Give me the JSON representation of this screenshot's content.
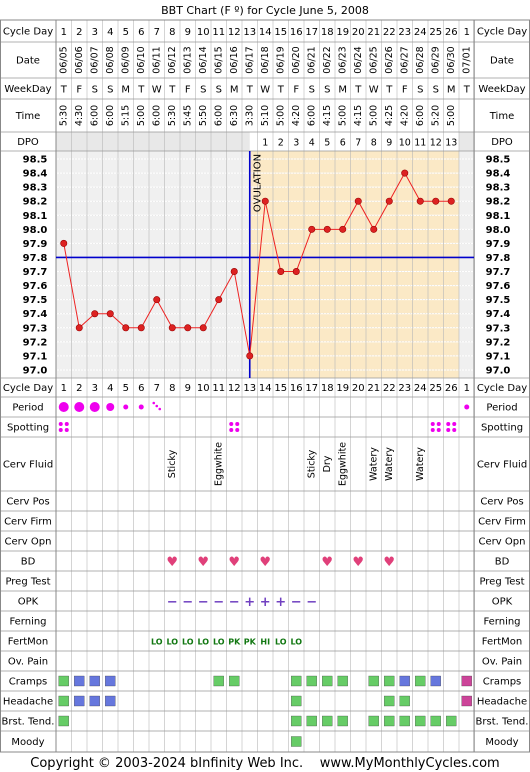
{
  "title": "BBT Chart (F º) for Cycle June 5, 2008",
  "footer": "Copyright © 2003-2024 bInfinity Web Inc.    www.MyMonthlyCycles.com",
  "labels": {
    "cycle_day": "Cycle Day",
    "date": "Date",
    "weekday": "WeekDay",
    "time": "Time",
    "dpo": "DPO",
    "period": "Period",
    "spotting": "Spotting",
    "cerv_fluid": "Cerv Fluid",
    "cerv_pos": "Cerv Pos",
    "cerv_firm": "Cerv Firm",
    "cerv_opn": "Cerv Opn",
    "bd": "BD",
    "preg_test": "Preg Test",
    "opk": "OPK",
    "ferning": "Ferning",
    "fertmon": "FertMon",
    "ov_pain": "Ov. Pain",
    "cramps": "Cramps",
    "headache": "Headache",
    "brst_tend": "Brst. Tend.",
    "moody": "Moody"
  },
  "ovulation_label": "OVULATION",
  "cycle_days": [
    "1",
    "2",
    "3",
    "4",
    "5",
    "6",
    "7",
    "8",
    "9",
    "10",
    "11",
    "12",
    "13",
    "14",
    "15",
    "16",
    "17",
    "18",
    "19",
    "20",
    "21",
    "22",
    "23",
    "24",
    "25",
    "26",
    "1"
  ],
  "dates": [
    "06/05",
    "06/06",
    "06/07",
    "06/08",
    "06/09",
    "06/10",
    "06/11",
    "06/12",
    "06/13",
    "06/14",
    "06/15",
    "06/16",
    "06/17",
    "06/18",
    "06/19",
    "06/20",
    "06/21",
    "06/22",
    "06/23",
    "06/24",
    "06/25",
    "06/26",
    "06/27",
    "06/28",
    "06/29",
    "06/30",
    "07/01"
  ],
  "weekdays": [
    "T",
    "F",
    "S",
    "S",
    "M",
    "T",
    "W",
    "T",
    "F",
    "S",
    "S",
    "M",
    "T",
    "W",
    "T",
    "F",
    "S",
    "S",
    "M",
    "T",
    "W",
    "T",
    "F",
    "S",
    "S",
    "M",
    "T"
  ],
  "times": [
    "5:30",
    "4:30",
    "6:00",
    "6:00",
    "5:15",
    "5:00",
    "6:00",
    "5:30",
    "5:45",
    "5:50",
    "6:00",
    "6:30",
    "3:30",
    "5:10",
    "5:00",
    "4:20",
    "6:00",
    "4:15",
    "5:00",
    "4:15",
    "5:00",
    "4:25",
    "4:20",
    "6:00",
    "5:20",
    "5:00",
    ""
  ],
  "dpo": [
    "",
    "",
    "",
    "",
    "",
    "",
    "",
    "",
    "",
    "",
    "",
    "",
    "",
    "1",
    "2",
    "3",
    "4",
    "5",
    "6",
    "7",
    "8",
    "9",
    "10",
    "11",
    "12",
    "13",
    ""
  ],
  "chart_data": {
    "type": "line",
    "title": "BBT Chart (F º) for Cycle June 5, 2008",
    "x": [
      "1",
      "2",
      "3",
      "4",
      "5",
      "6",
      "7",
      "8",
      "9",
      "10",
      "11",
      "12",
      "13",
      "14",
      "15",
      "16",
      "17",
      "18",
      "19",
      "20",
      "21",
      "22",
      "23",
      "24",
      "25",
      "26"
    ],
    "series": [
      {
        "values": [
          97.9,
          97.3,
          97.4,
          97.4,
          97.3,
          97.3,
          97.5,
          97.3,
          97.3,
          97.3,
          97.5,
          97.7,
          97.1,
          98.2,
          97.7,
          97.7,
          98.0,
          98.0,
          98.0,
          98.2,
          98.0,
          98.2,
          98.4,
          98.2,
          98.2,
          98.2
        ]
      }
    ],
    "yticks": [
      "98.5",
      "98.4",
      "98.3",
      "98.2",
      "98.1",
      "98.0",
      "97.9",
      "97.8",
      "97.7",
      "97.6",
      "97.5",
      "97.4",
      "97.3",
      "97.2",
      "97.1",
      "97.0"
    ],
    "ylim": [
      97.0,
      98.5
    ],
    "coverline": 97.8,
    "ovulation_day": 13,
    "grid": true
  },
  "period": [
    "heavy",
    "heavy",
    "heavy",
    "medium",
    "light",
    "light",
    "spotting-dots",
    "",
    "",
    "",
    "",
    "",
    "",
    "",
    "",
    "",
    "",
    "",
    "",
    "",
    "",
    "",
    "",
    "",
    "",
    "",
    "light"
  ],
  "spotting": [
    true,
    false,
    false,
    false,
    false,
    false,
    false,
    false,
    false,
    false,
    false,
    true,
    false,
    false,
    false,
    false,
    false,
    false,
    false,
    false,
    false,
    false,
    false,
    false,
    true,
    true,
    false
  ],
  "cerv_fluid": [
    "",
    "",
    "",
    "",
    "",
    "",
    "",
    "Sticky",
    "",
    "",
    "Eggwhite",
    "",
    "",
    "",
    "",
    "",
    "Sticky",
    "Dry",
    "Eggwhite",
    "",
    "Watery",
    "Watery",
    "",
    "Watery",
    "",
    "",
    ""
  ],
  "bd": [
    false,
    false,
    false,
    false,
    false,
    false,
    false,
    true,
    false,
    true,
    false,
    true,
    false,
    true,
    false,
    false,
    false,
    true,
    false,
    true,
    false,
    true,
    false,
    false,
    false,
    false,
    false
  ],
  "opk": [
    "",
    "",
    "",
    "",
    "",
    "",
    "",
    "−",
    "−",
    "−",
    "−",
    "−",
    "+",
    "+",
    "+",
    "−",
    "−",
    "",
    "",
    "",
    "",
    "",
    "",
    "",
    "",
    "",
    ""
  ],
  "fertmon": [
    "",
    "",
    "",
    "",
    "",
    "",
    "LO",
    "LO",
    "LO",
    "LO",
    "LO",
    "PK",
    "PK",
    "HI",
    "LO",
    "LO",
    "",
    "",
    "",
    "",
    "",
    "",
    "",
    "",
    "",
    "",
    ""
  ],
  "colors": {
    "green": "#66cc66",
    "blue": "#6677dd",
    "magenta": "#cc4499",
    "period": "#ee00ee",
    "coverline": "#0000cc",
    "line": "#ee2222",
    "luteal_bg": "#fbe9c6",
    "header_bg": "#e8e8e8"
  },
  "cramps": [
    "green",
    "blue",
    "blue",
    "blue",
    "",
    "",
    "",
    "",
    "",
    "",
    "green",
    "green",
    "",
    "",
    "",
    "green",
    "green",
    "green",
    "green",
    "",
    "green",
    "green",
    "blue",
    "green",
    "blue",
    "",
    "magenta"
  ],
  "headache": [
    "green",
    "blue",
    "blue",
    "blue",
    "",
    "",
    "",
    "",
    "",
    "",
    "",
    "",
    "",
    "",
    "",
    "green",
    "",
    "",
    "",
    "",
    "",
    "green",
    "green",
    "",
    "",
    "",
    "magenta"
  ],
  "brst_tend": [
    "green",
    "",
    "",
    "",
    "",
    "",
    "",
    "",
    "",
    "",
    "",
    "",
    "",
    "",
    "",
    "green",
    "green",
    "green",
    "green",
    "",
    "green",
    "green",
    "green",
    "green",
    "green",
    "green",
    ""
  ],
  "moody": [
    "",
    "",
    "",
    "",
    "",
    "",
    "",
    "",
    "",
    "",
    "",
    "",
    "",
    "",
    "",
    "green",
    "",
    "",
    "",
    "",
    "",
    "",
    "",
    "",
    "",
    "",
    ""
  ]
}
